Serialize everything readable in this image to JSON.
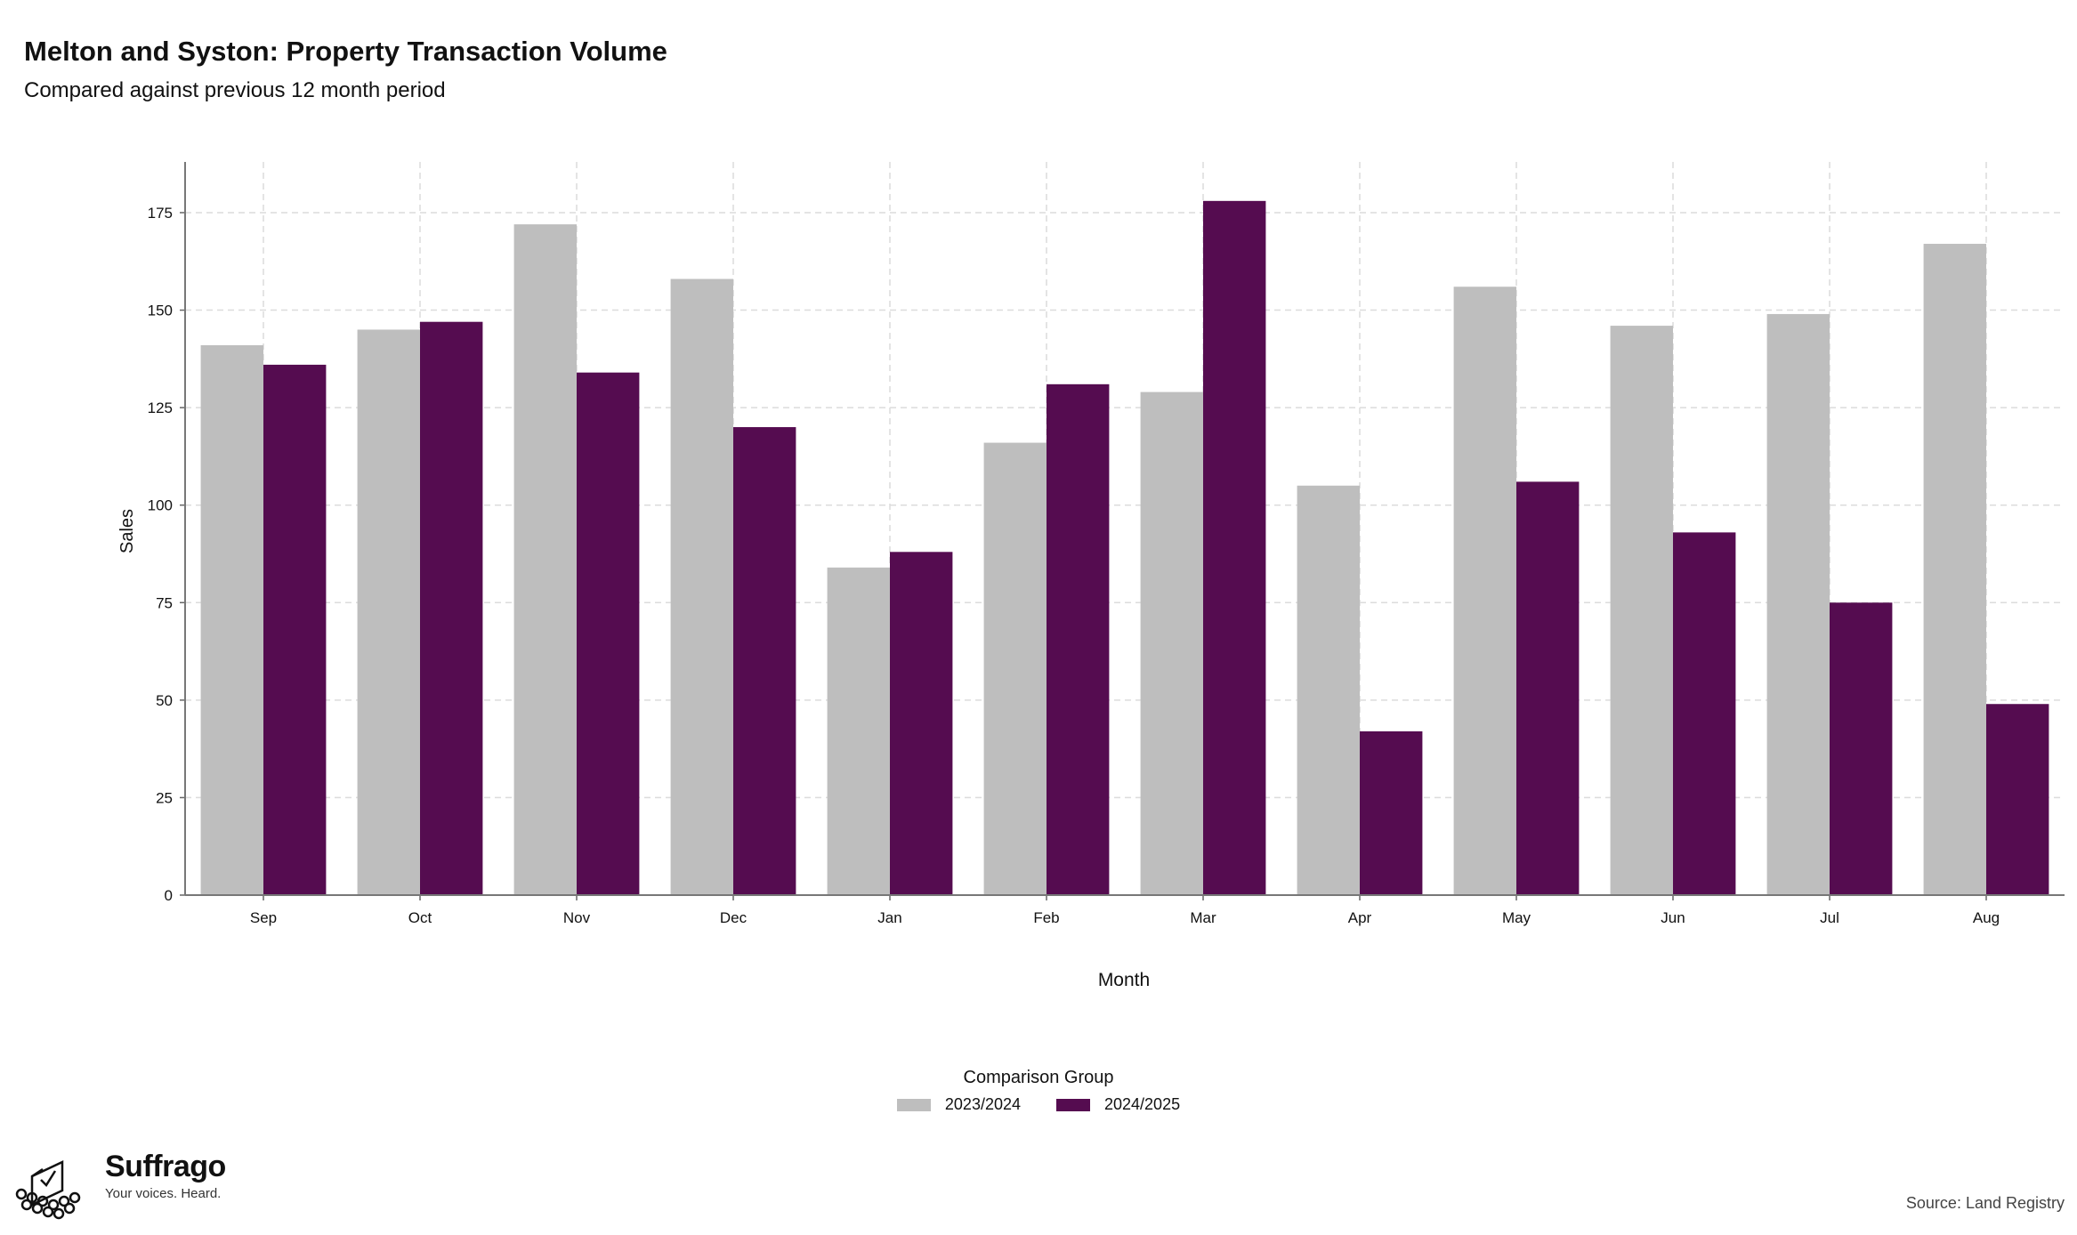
{
  "header": {
    "title": "Melton and Syston: Property Transaction Volume",
    "subtitle": "Compared against previous 12 month period"
  },
  "legend": {
    "title": "Comparison Group"
  },
  "branding": {
    "name": "Suffrago",
    "tagline": "Your voices. Heard."
  },
  "footer": {
    "source": "Source: Land Registry"
  },
  "chart_data": {
    "type": "bar",
    "categories": [
      "Sep",
      "Oct",
      "Nov",
      "Dec",
      "Jan",
      "Feb",
      "Mar",
      "Apr",
      "May",
      "Jun",
      "Jul",
      "Aug"
    ],
    "series": [
      {
        "name": "2023/2024",
        "color": "#bebebe",
        "values": [
          141,
          145,
          172,
          158,
          84,
          116,
          129,
          105,
          156,
          146,
          149,
          167
        ]
      },
      {
        "name": "2024/2025",
        "color": "#550c50",
        "values": [
          136,
          147,
          134,
          120,
          88,
          131,
          178,
          42,
          106,
          93,
          75,
          49
        ]
      }
    ],
    "xlabel": "Month",
    "ylabel": "Sales",
    "ylim": [
      0,
      188
    ],
    "yticks": [
      0,
      25,
      50,
      75,
      100,
      125,
      150,
      175
    ],
    "grid": true,
    "legend_position": "bottom"
  }
}
